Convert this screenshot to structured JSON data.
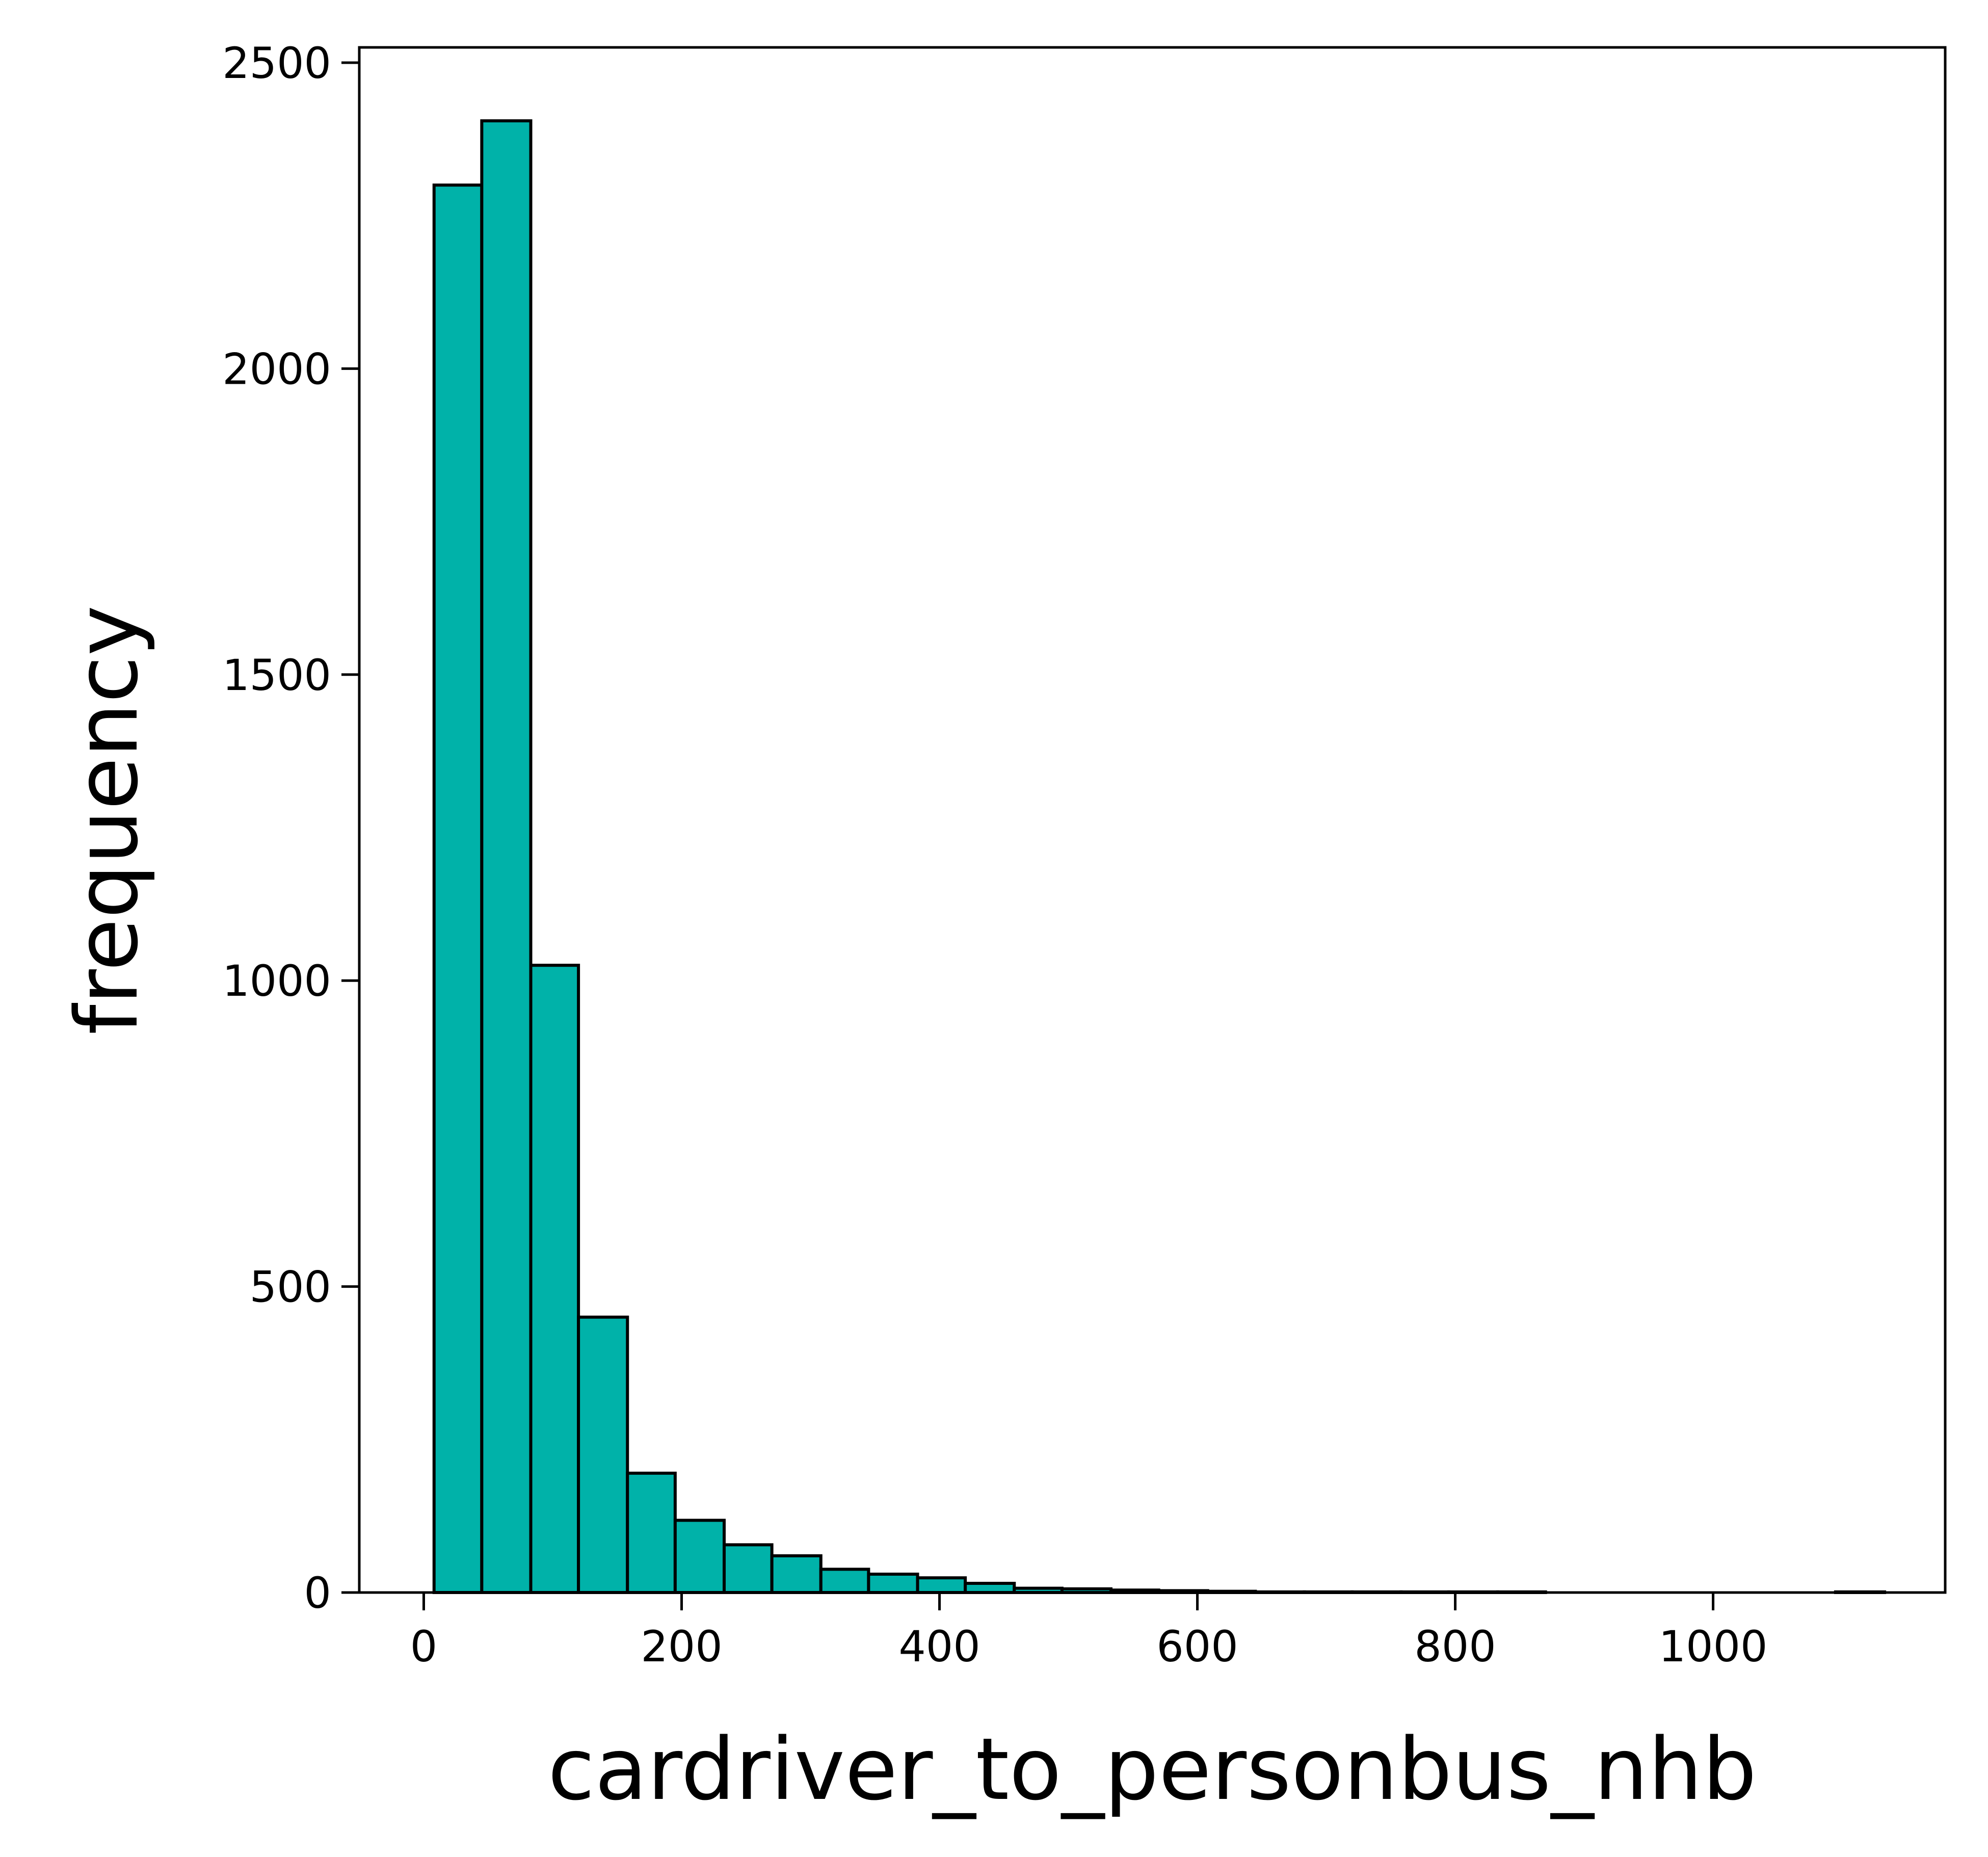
{
  "chart_data": {
    "type": "histogram",
    "title": "",
    "xlabel": "cardriver_to_personbus_nhb",
    "ylabel": "frequency",
    "xlim": [
      -50,
      1180
    ],
    "ylim": [
      0,
      2525
    ],
    "x_ticks": [
      0,
      200,
      400,
      600,
      800,
      1000
    ],
    "y_ticks": [
      0,
      500,
      1000,
      1500,
      2000,
      2500
    ],
    "bar_color": "#00b2a9",
    "edge_color": "#000000",
    "grid": false,
    "legend": "none",
    "bins": [
      {
        "x0": 8,
        "x1": 45,
        "count": 2300
      },
      {
        "x0": 45,
        "x1": 83,
        "count": 2405
      },
      {
        "x0": 83,
        "x1": 120,
        "count": 1025
      },
      {
        "x0": 120,
        "x1": 158,
        "count": 450
      },
      {
        "x0": 158,
        "x1": 195,
        "count": 195
      },
      {
        "x0": 195,
        "x1": 233,
        "count": 118
      },
      {
        "x0": 233,
        "x1": 270,
        "count": 78
      },
      {
        "x0": 270,
        "x1": 308,
        "count": 60
      },
      {
        "x0": 308,
        "x1": 345,
        "count": 38
      },
      {
        "x0": 345,
        "x1": 383,
        "count": 30
      },
      {
        "x0": 383,
        "x1": 420,
        "count": 24
      },
      {
        "x0": 420,
        "x1": 458,
        "count": 15
      },
      {
        "x0": 458,
        "x1": 495,
        "count": 7
      },
      {
        "x0": 495,
        "x1": 533,
        "count": 6
      },
      {
        "x0": 533,
        "x1": 570,
        "count": 4
      },
      {
        "x0": 570,
        "x1": 608,
        "count": 3
      },
      {
        "x0": 608,
        "x1": 645,
        "count": 2
      },
      {
        "x0": 645,
        "x1": 683,
        "count": 1
      },
      {
        "x0": 683,
        "x1": 720,
        "count": 1
      },
      {
        "x0": 720,
        "x1": 758,
        "count": 1
      },
      {
        "x0": 758,
        "x1": 795,
        "count": 1
      },
      {
        "x0": 795,
        "x1": 833,
        "count": 1
      },
      {
        "x0": 833,
        "x1": 870,
        "count": 1
      },
      {
        "x0": 870,
        "x1": 908,
        "count": 0
      },
      {
        "x0": 908,
        "x1": 945,
        "count": 0
      },
      {
        "x0": 945,
        "x1": 983,
        "count": 0
      },
      {
        "x0": 983,
        "x1": 1020,
        "count": 0
      },
      {
        "x0": 1020,
        "x1": 1058,
        "count": 0
      },
      {
        "x0": 1058,
        "x1": 1095,
        "count": 0
      },
      {
        "x0": 1095,
        "x1": 1133,
        "count": 1
      }
    ]
  }
}
